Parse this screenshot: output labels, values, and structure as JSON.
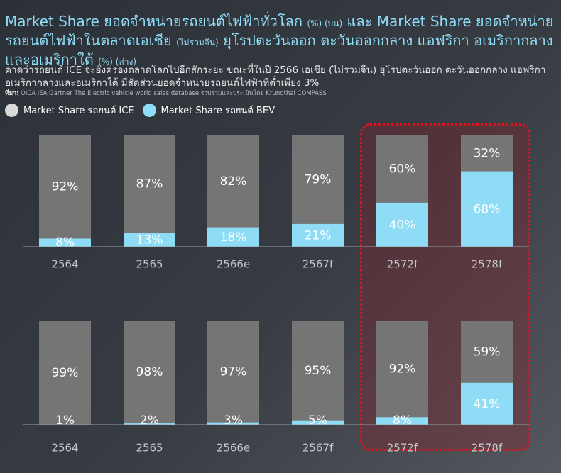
{
  "header": {
    "title_a": "Market  Share  ยอดจำหน่ายรถยนต์ไฟฟ้าทั่วโลก",
    "title_a_unit": "(%) (บน)",
    "title_b": "และ Market  Share ยอดจำหน่ายรถยนต์ไฟฟ้าในตลาดเอเชีย",
    "title_b_note": "(ไม่รวมจีน)",
    "title_c": "ยุโรปตะวันออก ตะวันออกกลาง แอฟริกา อเมริกากลางและอเมริกาใต้",
    "title_c_unit": "(%) (ล่าง)",
    "subtitle": "คาดว่ารถยนต์ ICE จะยังครองตลาดโลกไปอีกสักระยะ ขณะที่ในปี 2566 เอเชีย (ไม่รวมจีน) ยุโรปตะวันออก ตะวันออกกลาง แอฟริกา อเมริกากลางและอเมริกาใต้ มีสัดส่วนยอดจำหน่ายรถยนต์ไฟฟ้าที่ต่ำเพียง 3%",
    "source_label": "ที่มา:",
    "source_text": "OICA IEA  Gartner The Electric vehicle world sales database รวบรวมและประเมินโดย Krungthai COMPASS"
  },
  "legend": [
    {
      "label": "Market Share รถยนต์ ICE",
      "color": "#d9d9d9"
    },
    {
      "label": "Market Share รถยนต์ BEV",
      "color": "#8fdcf6"
    }
  ],
  "colors": {
    "ice": "#757575",
    "bev": "#8fdcf6",
    "highlight": "#e1121e"
  },
  "chart_data": [
    {
      "type": "bar",
      "stacked": true,
      "categories": [
        "2564",
        "2565",
        "2566e",
        "2567f",
        "2572f",
        "2578f"
      ],
      "series": [
        {
          "name": "Market Share รถยนต์ ICE",
          "values": [
            92,
            87,
            82,
            79,
            60,
            32
          ]
        },
        {
          "name": "Market Share รถยนต์ BEV",
          "values": [
            8,
            13,
            18,
            21,
            40,
            68
          ]
        }
      ],
      "labels": {
        "ice": [
          "92%",
          "87%",
          "82%",
          "79%",
          "60%",
          "32%"
        ],
        "bev": [
          "8%",
          "13%",
          "18%",
          "21%",
          "40%",
          "68%"
        ]
      },
      "ylim": [
        0,
        100
      ]
    },
    {
      "type": "bar",
      "stacked": true,
      "categories": [
        "2564",
        "2565",
        "2566e",
        "2567f",
        "2572f",
        "2578f"
      ],
      "series": [
        {
          "name": "Market Share รถยนต์ ICE",
          "values": [
            99,
            98,
            97,
            95,
            92,
            59
          ]
        },
        {
          "name": "Market Share รถยนต์ BEV",
          "values": [
            1,
            2,
            3,
            5,
            8,
            41
          ]
        }
      ],
      "labels": {
        "ice": [
          "99%",
          "98%",
          "97%",
          "95%",
          "92%",
          "59%"
        ],
        "bev": [
          "1%",
          "2%",
          "3%",
          "5%",
          "8%",
          "41%"
        ]
      },
      "ylim": [
        0,
        100
      ]
    }
  ]
}
